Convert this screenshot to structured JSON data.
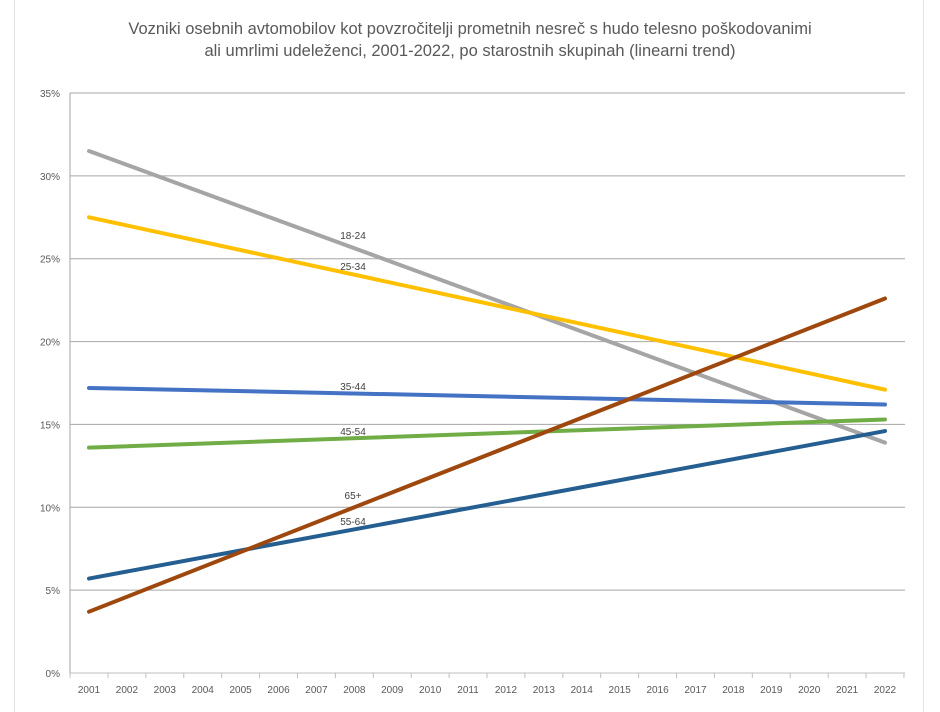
{
  "chart_data": {
    "type": "line",
    "title_line1": "Vozniki osebnih avtomobilov kot povzročitelji prometnih nesreč s hudo telesno poškodovanimi",
    "title_line2": "ali umrlimi udeleženci, 2001-2022, po starostnih skupinah (linearni trend)",
    "xlabel": "",
    "ylabel": "",
    "categories": [
      "2001",
      "2002",
      "2003",
      "2004",
      "2005",
      "2006",
      "2007",
      "2008",
      "2009",
      "2010",
      "2011",
      "2012",
      "2013",
      "2014",
      "2015",
      "2016",
      "2017",
      "2018",
      "2019",
      "2020",
      "2021",
      "2022"
    ],
    "y_ticks": [
      "0%",
      "5%",
      "10%",
      "15%",
      "20%",
      "25%",
      "30%",
      "35%"
    ],
    "ylim": [
      0,
      35
    ],
    "grid": true,
    "legend": "none (inline labels)",
    "series": [
      {
        "name": "18-24",
        "color": "#A5A5A5",
        "x": [
          2001,
          2022
        ],
        "values": [
          31.5,
          13.9
        ]
      },
      {
        "name": "25-34",
        "color": "#FFC000",
        "x": [
          2001,
          2022
        ],
        "values": [
          27.5,
          17.1
        ]
      },
      {
        "name": "35-44",
        "color": "#4472C4",
        "x": [
          2001,
          2022
        ],
        "values": [
          17.2,
          16.2
        ]
      },
      {
        "name": "45-54",
        "color": "#70AD47",
        "x": [
          2001,
          2022
        ],
        "values": [
          13.6,
          15.3
        ]
      },
      {
        "name": "55-64",
        "color": "#255E91",
        "x": [
          2001,
          2022
        ],
        "values": [
          5.7,
          14.6
        ]
      },
      {
        "name": "65+",
        "color": "#9E480E",
        "x": [
          2001,
          2022
        ],
        "values": [
          3.7,
          22.6
        ]
      }
    ]
  }
}
